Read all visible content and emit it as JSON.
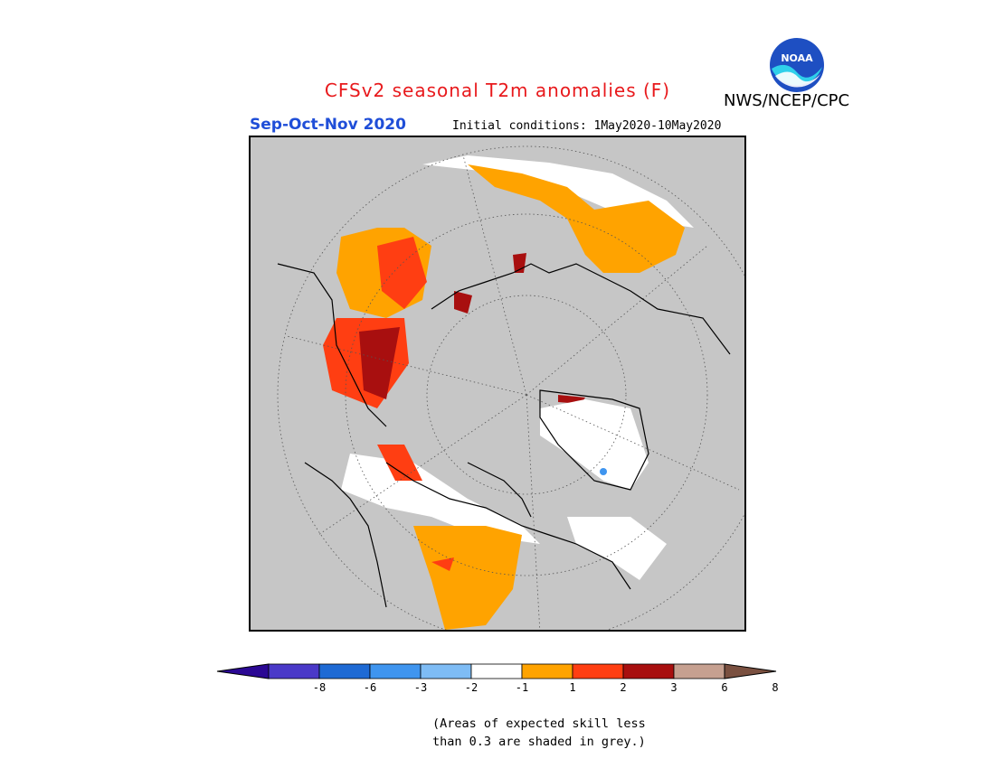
{
  "title": "CFSv2 seasonal T2m anomalies (F)",
  "agency": "NWS/NCEP/CPC",
  "logo": {
    "text": "NOAA",
    "icon": "noaa-logo"
  },
  "season": "Sep-Oct-Nov 2020",
  "initial_conditions": "Initial conditions: 1May2020-10May2020",
  "map": {
    "projection": "north polar stereographic",
    "background_color": "#c6c6c6",
    "grid": "dotted lat/lon circles"
  },
  "colorbar": {
    "colors": [
      "#2b0894",
      "#4a39c8",
      "#1e6ad4",
      "#3f95ef",
      "#7ebcf5",
      "#ffffff",
      "#ffa300",
      "#ff3e12",
      "#a80f0f",
      "#c6a090",
      "#7a5040"
    ],
    "labels": [
      "-8",
      "-6",
      "-3",
      "-2",
      "-1",
      "1",
      "2",
      "3",
      "6",
      "8"
    ]
  },
  "note": {
    "line1": "(Areas of expected skill less",
    "line2": "than 0.3 are shaded in grey.)"
  }
}
